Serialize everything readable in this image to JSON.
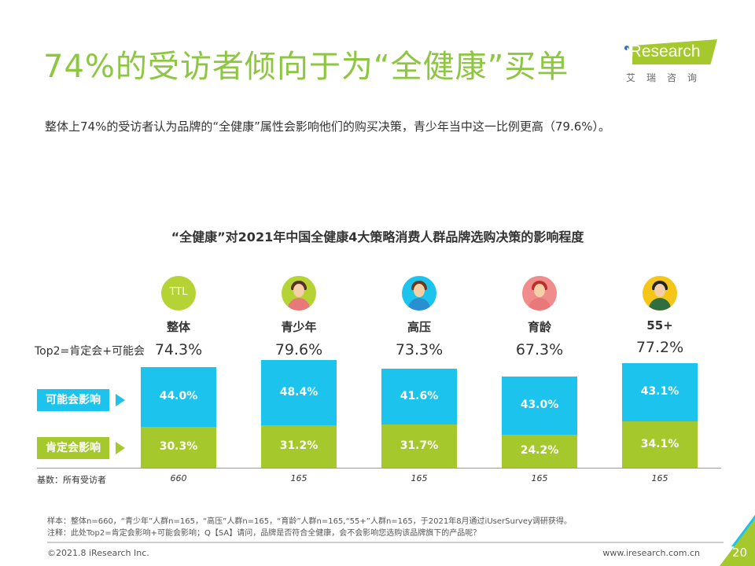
{
  "header": {
    "title": "74%的受访者倾向于为“全健康”买单",
    "logo_text": "iResearch",
    "logo_cn": "艾瑞咨询"
  },
  "subtitle": "整体上74%的受访者认为品牌的“全健康”属性会影响他们的购买决策，青少年当中这一比例更高（79.6%）。",
  "colors": {
    "title": "#8dc63f",
    "blue": "#1cc3ec",
    "green": "#a5c82d"
  },
  "chart_data": {
    "type": "bar",
    "stacked": true,
    "title": "“全健康”对2021年中国全健康4大策略消费人群品牌选购决策的影响程度",
    "categories": [
      "整体",
      "青少年",
      "高压",
      "育龄",
      "55+"
    ],
    "avatar_icons": [
      "TTL",
      "girl-icon",
      "man-icon",
      "woman-icon",
      "elder-man-icon"
    ],
    "top2_label": "Top2=肯定会+可能会",
    "top2": [
      "74.3%",
      "79.6%",
      "73.3%",
      "67.3%",
      "77.2%"
    ],
    "series": [
      {
        "name": "肯定会影响",
        "color": "#a5c82d",
        "values": [
          30.3,
          31.2,
          31.7,
          24.2,
          34.1
        ],
        "labels": [
          "30.3%",
          "31.2%",
          "31.7%",
          "24.2%",
          "34.1%"
        ]
      },
      {
        "name": "可能会影响",
        "color": "#1cc3ec",
        "values": [
          44.0,
          48.4,
          41.6,
          43.0,
          43.1
        ],
        "labels": [
          "44.0%",
          "48.4%",
          "41.6%",
          "43.0%",
          "43.1%"
        ]
      }
    ],
    "base_label": "基数：所有受访者",
    "base_n": [
      "660",
      "165",
      "165",
      "165",
      "165"
    ]
  },
  "footer": {
    "note1": "样本：整体n=660，“青少年”人群n=165，“高压”人群n=165，“育龄”人群n=165,“55+”人群n=165，于2021年8月通过iUserSurvey调研获得。",
    "note2": "注释：此处Top2=肯定会影响+可能会影响；Q【SA】请问，品牌是否符合全健康，会不会影响您选购该品牌旗下的产品呢？",
    "copyright": "©2021.8 iResearch Inc.",
    "site": "www.iresearch.com.cn",
    "page": "20"
  }
}
